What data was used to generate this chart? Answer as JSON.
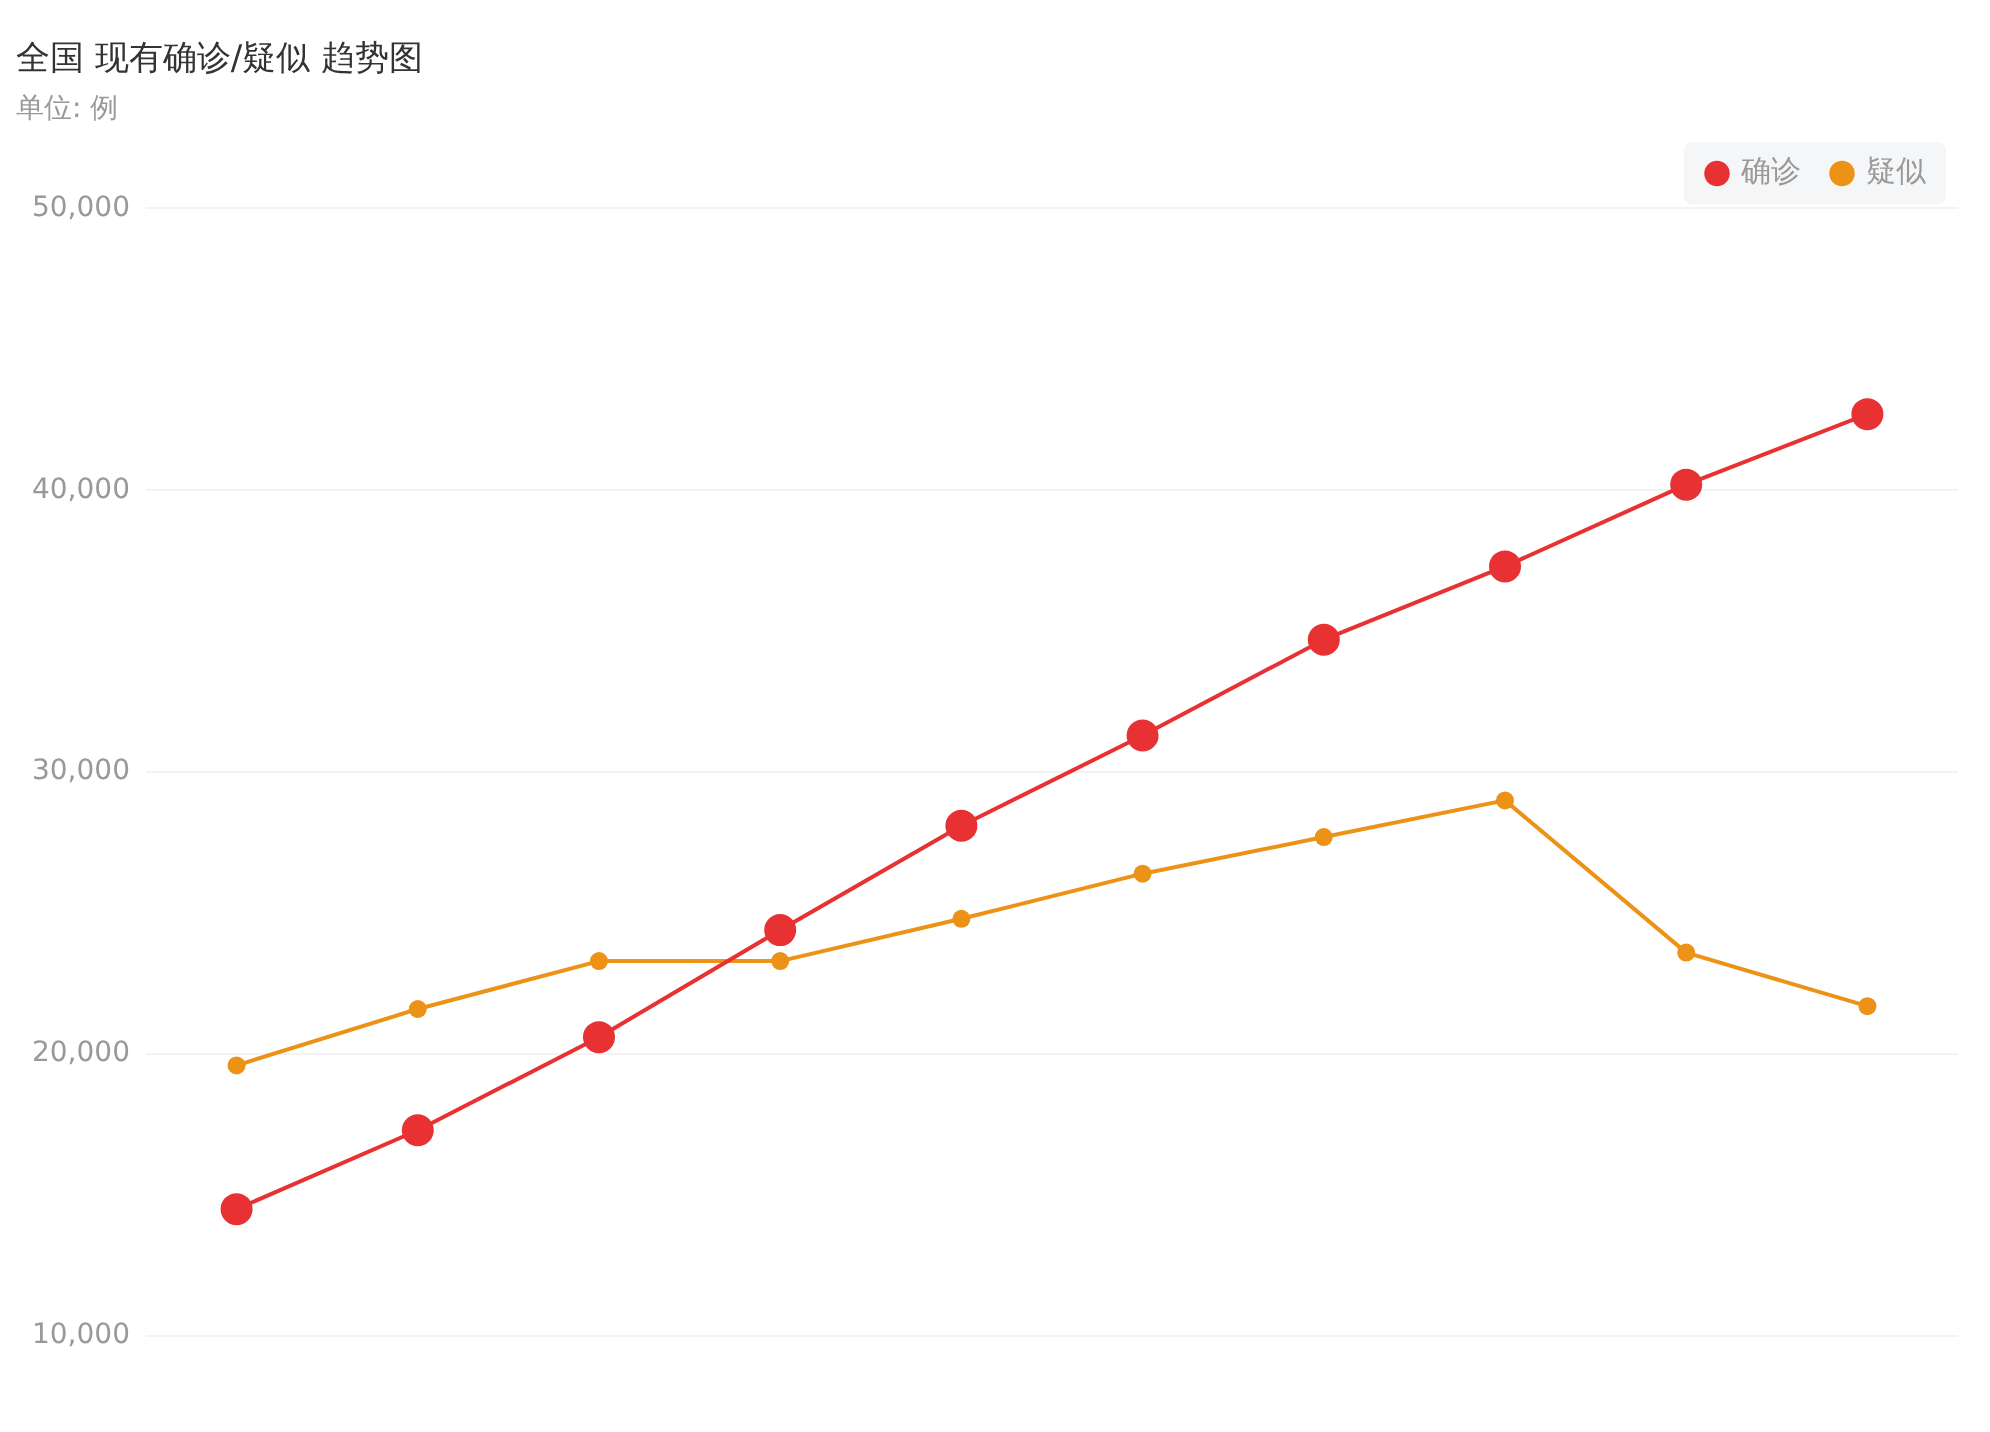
{
  "chart_data": {
    "type": "line",
    "title": "全国 现有确诊/疑似 趋势图",
    "ylabel": "单位: 例",
    "categories": [
      null,
      null,
      null,
      null,
      null,
      null,
      null,
      null,
      null,
      null
    ],
    "series": [
      {
        "name": "确诊",
        "color": "#e83132",
        "values": [
          14500,
          17300,
          20600,
          24400,
          28100,
          31300,
          34700,
          37300,
          40200,
          42700
        ]
      },
      {
        "name": "疑似",
        "color": "#ec9217",
        "values": [
          19600,
          21600,
          23300,
          23300,
          24800,
          26400,
          27700,
          29000,
          23600,
          21700
        ]
      }
    ],
    "ylim": [
      10000,
      50000
    ],
    "yticks": [
      {
        "value": 10000,
        "label": "10,000"
      },
      {
        "value": 20000,
        "label": "20,000"
      },
      {
        "value": 30000,
        "label": "30,000"
      },
      {
        "value": 40000,
        "label": "40,000"
      },
      {
        "value": 50000,
        "label": "50,000"
      }
    ],
    "grid": "y",
    "legend": "top right",
    "marker": "circle",
    "line_style": "solid",
    "tick_labels": "y"
  }
}
